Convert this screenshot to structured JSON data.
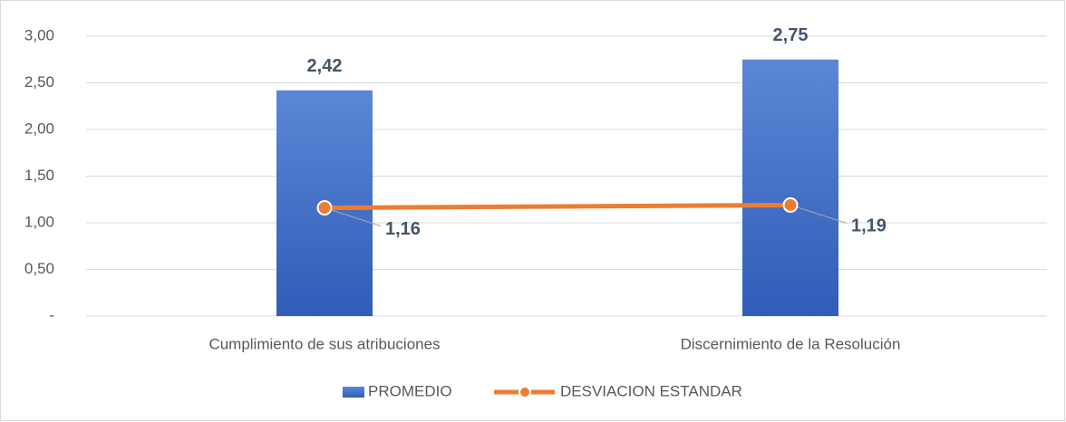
{
  "chart_data": {
    "type": "bar",
    "categories": [
      "Cumplimiento de sus atribuciones",
      "Discernimiento de la Resolución"
    ],
    "series": [
      {
        "name": "PROMEDIO",
        "color": "#4472c4",
        "values": [
          2.42,
          2.75
        ],
        "value_labels": [
          "2,42",
          "2,75"
        ]
      },
      {
        "name": "DESVIACION ESTANDAR",
        "color": "#ed7d31",
        "type": "line",
        "values": [
          1.16,
          1.19
        ],
        "value_labels": [
          "1,16",
          "1,19"
        ]
      }
    ],
    "ylim": [
      0,
      3
    ],
    "yticks": [
      {
        "value": 0,
        "label": "-"
      },
      {
        "value": 0.5,
        "label": "0,50"
      },
      {
        "value": 1,
        "label": "1,00"
      },
      {
        "value": 1.5,
        "label": "1,50"
      },
      {
        "value": 2,
        "label": "2,00"
      },
      {
        "value": 2.5,
        "label": "2,50"
      },
      {
        "value": 3,
        "label": "3,00"
      }
    ],
    "grid": true,
    "legend": "bottom"
  }
}
